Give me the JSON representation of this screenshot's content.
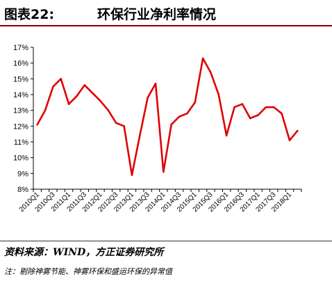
{
  "figure": {
    "number": "图表22:",
    "title": "环保行业净利率情况",
    "source": "资料来源：WIND，方正证券研究所",
    "note": "注：剔除神雾节能、神雾环保和盛运环保的异常值"
  },
  "chart_data": {
    "type": "line",
    "title": "",
    "xlabel": "",
    "ylabel": "",
    "ylim": [
      8,
      17
    ],
    "y_ticks": [
      "8%",
      "9%",
      "10%",
      "11%",
      "12%",
      "13%",
      "14%",
      "15%",
      "16%",
      "17%"
    ],
    "x_tick_labels": [
      "2010Q1",
      "2010Q3",
      "2011Q1",
      "2011Q3",
      "2012Q1",
      "2012Q3",
      "2013Q1",
      "2013Q3",
      "2014Q1",
      "2014Q3",
      "2015Q1",
      "2015Q3",
      "2016Q1",
      "2016Q3",
      "2017Q1",
      "2017Q3",
      "2018Q1"
    ],
    "grid": false,
    "legend": "none",
    "series_color": "#e00000",
    "x": [
      "2010Q1",
      "2010Q2",
      "2010Q3",
      "2010Q4",
      "2011Q1",
      "2011Q2",
      "2011Q3",
      "2011Q4",
      "2012Q1",
      "2012Q2",
      "2012Q3",
      "2012Q4",
      "2013Q1",
      "2013Q2",
      "2013Q3",
      "2013Q4",
      "2014Q1",
      "2014Q2",
      "2014Q3",
      "2014Q4",
      "2015Q1",
      "2015Q2",
      "2015Q3",
      "2015Q4",
      "2016Q1",
      "2016Q2",
      "2016Q3",
      "2016Q4",
      "2017Q1",
      "2017Q2",
      "2017Q3",
      "2017Q4",
      "2018Q1",
      "2018Q2"
    ],
    "values": [
      12.1,
      13.0,
      14.5,
      15.0,
      13.4,
      13.9,
      14.6,
      14.1,
      13.6,
      13.0,
      12.2,
      12.0,
      8.9,
      11.4,
      13.8,
      14.7,
      9.1,
      12.1,
      12.6,
      12.8,
      13.5,
      16.3,
      15.4,
      14.0,
      11.4,
      13.2,
      13.4,
      12.5,
      12.7,
      13.2,
      13.2,
      12.8,
      11.1,
      11.7
    ]
  }
}
